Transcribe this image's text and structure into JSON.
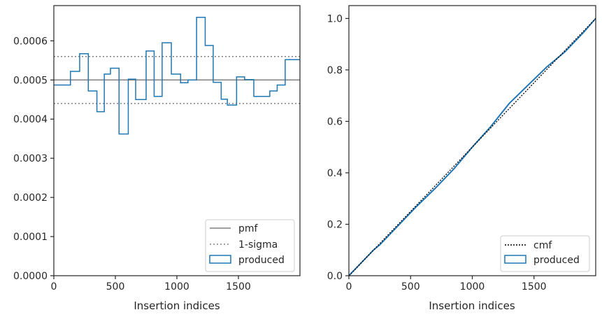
{
  "colors": {
    "produced": "#1f77b4",
    "pmf": "#808080",
    "sigma": "#808080",
    "cmf": "#000000",
    "spine": "#262626"
  },
  "chart_data": [
    {
      "type": "step",
      "xlabel": "Insertion indices",
      "ylabel": "",
      "xlim": [
        0,
        2000
      ],
      "ylim": [
        0,
        0.00069
      ],
      "x_ticks": [
        0,
        500,
        1000,
        1500
      ],
      "x_tick_labels": [
        "0",
        "500",
        "1000",
        "1500"
      ],
      "y_ticks": [
        0,
        0.0001,
        0.0002,
        0.0003,
        0.0004,
        0.0005,
        0.0006
      ],
      "y_tick_labels": [
        "0.0000",
        "0.0001",
        "0.0002",
        "0.0003",
        "0.0004",
        "0.0005",
        "0.0006"
      ],
      "pmf": 0.0005,
      "sigma_lines": [
        0.00044,
        0.00056
      ],
      "bin_edges": [
        0,
        135,
        210,
        280,
        350,
        410,
        460,
        530,
        605,
        665,
        750,
        815,
        880,
        955,
        1030,
        1090,
        1160,
        1230,
        1295,
        1360,
        1410,
        1485,
        1550,
        1625,
        1755,
        1815,
        1880,
        2000
      ],
      "bin_values": [
        0.000487,
        0.000522,
        0.000567,
        0.000472,
        0.000419,
        0.000515,
        0.00053,
        0.000362,
        0.000502,
        0.00045,
        0.000574,
        0.000458,
        0.000595,
        0.000515,
        0.000493,
        0.0005,
        0.00066,
        0.000588,
        0.000494,
        0.000451,
        0.000436,
        0.000508,
        0.000501,
        0.000458,
        0.000472,
        0.000487,
        0.000552
      ],
      "legend": {
        "position": "lower right",
        "entries": [
          "pmf",
          "1-sigma",
          "produced"
        ]
      }
    },
    {
      "type": "step",
      "xlabel": "Insertion indices",
      "ylabel": "",
      "xlim": [
        0,
        2000
      ],
      "ylim": [
        0,
        1.05
      ],
      "x_ticks": [
        0,
        500,
        1000,
        1500
      ],
      "x_tick_labels": [
        "0",
        "500",
        "1000",
        "1500"
      ],
      "y_ticks": [
        0,
        0.2,
        0.4,
        0.6,
        0.8,
        1.0
      ],
      "y_tick_labels": [
        "0.0",
        "0.2",
        "0.4",
        "0.6",
        "0.8",
        "1.0"
      ],
      "cmf": {
        "x": [
          0,
          2000
        ],
        "y": [
          0,
          1.0
        ]
      },
      "produced": {
        "x": [
          0,
          100,
          200,
          250,
          400,
          550,
          700,
          850,
          1000,
          1150,
          1300,
          1450,
          1600,
          1750,
          1900,
          2000
        ],
        "y": [
          0,
          0.05,
          0.1,
          0.12,
          0.195,
          0.27,
          0.34,
          0.415,
          0.5,
          0.58,
          0.67,
          0.74,
          0.81,
          0.87,
          0.945,
          1.0
        ]
      },
      "legend": {
        "position": "lower right",
        "entries": [
          "cmf",
          "produced"
        ]
      }
    }
  ]
}
